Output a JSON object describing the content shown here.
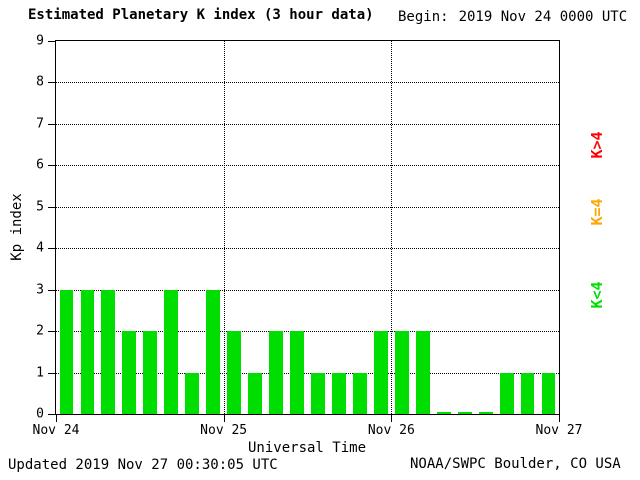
{
  "header": {
    "title": "Estimated Planetary K index (3 hour data)",
    "begin_label": "Begin:",
    "begin_value": "2019 Nov 24 0000 UTC"
  },
  "footer": {
    "updated": "Updated 2019 Nov 27 00:30:05 UTC",
    "source": "NOAA/SWPC Boulder, CO USA"
  },
  "chart_data": {
    "type": "bar",
    "title": "Estimated Planetary K index (3 hour data)",
    "xlabel": "Universal Time",
    "ylabel": "Kp index",
    "ylim": [
      0,
      9
    ],
    "yticks": [
      0,
      1,
      2,
      3,
      4,
      5,
      6,
      7,
      8,
      9
    ],
    "xticks": [
      "Nov 24",
      "Nov 25",
      "Nov 26",
      "Nov 27"
    ],
    "bar_interval_hours": 3,
    "values": [
      3,
      3,
      3,
      2,
      2,
      3,
      1,
      3,
      2,
      1,
      2,
      2,
      1,
      1,
      1,
      2,
      2,
      2,
      0,
      0,
      0,
      1,
      1,
      1
    ],
    "grid": "dotted horizontal lines at each integer, dotted vertical lines at day boundaries",
    "legend": [
      {
        "label": "K>4",
        "color": "#ff0000"
      },
      {
        "label": "K=4",
        "color": "#ffa500"
      },
      {
        "label": "K<4",
        "color": "#00dd00"
      }
    ],
    "bar_color_rule": "green if K<4, yellow if K=4, red if K>4",
    "colors": {
      "green": "#00dd00",
      "yellow": "#ffa500",
      "red": "#ff0000",
      "axis": "#000000"
    }
  }
}
